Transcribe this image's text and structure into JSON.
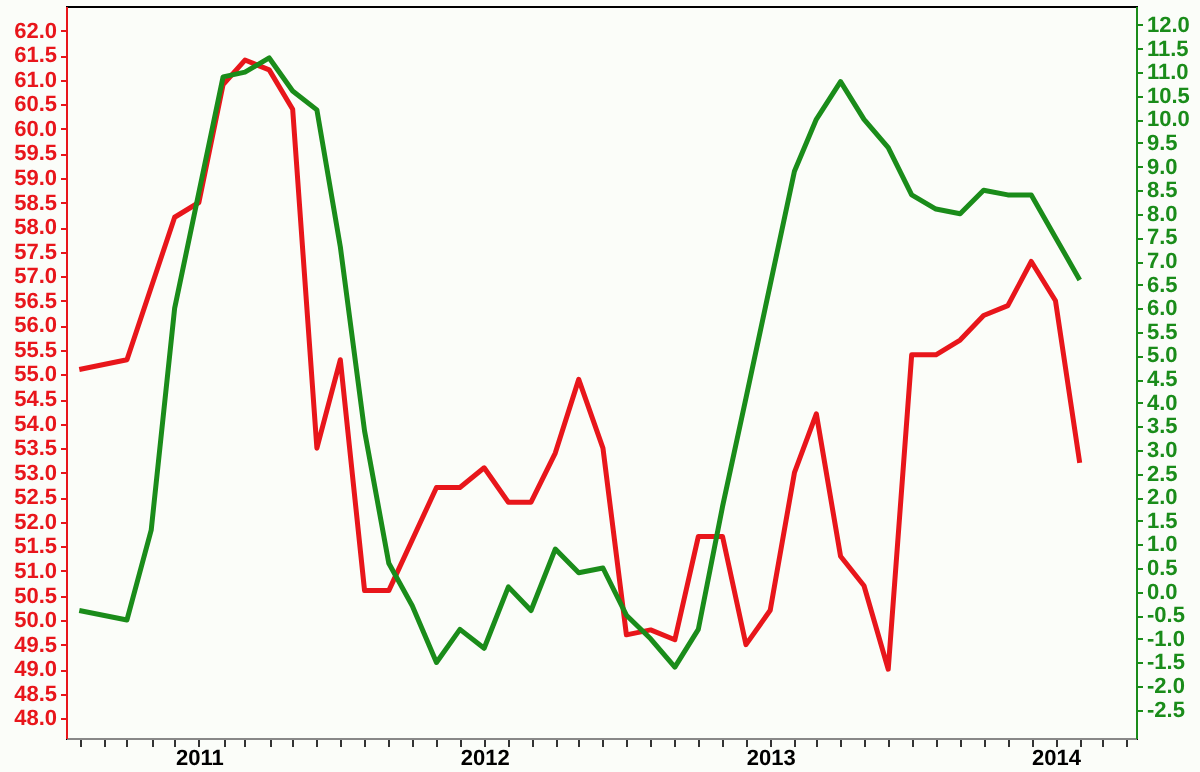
{
  "chart_data": {
    "type": "line",
    "legend": false,
    "grid": false,
    "marker": "none",
    "line_style": "solid",
    "xlim": [
      "2010-07-15",
      "2014-04-14"
    ],
    "xticks": [
      {
        "value": "2010-08",
        "label": null
      },
      {
        "value": "2010-09",
        "label": null
      },
      {
        "value": "2010-10",
        "label": null
      },
      {
        "value": "2010-11",
        "label": null
      },
      {
        "value": "2010-12",
        "label": null
      },
      {
        "value": "2011-01",
        "label": "2011"
      },
      {
        "value": "2011-02",
        "label": null
      },
      {
        "value": "2011-03",
        "label": null
      },
      {
        "value": "2011-04",
        "label": null
      },
      {
        "value": "2011-05",
        "label": null
      },
      {
        "value": "2011-06",
        "label": null
      },
      {
        "value": "2011-07",
        "label": null
      },
      {
        "value": "2011-08",
        "label": null
      },
      {
        "value": "2011-09",
        "label": null
      },
      {
        "value": "2011-10",
        "label": null
      },
      {
        "value": "2011-11",
        "label": null
      },
      {
        "value": "2011-12",
        "label": null
      },
      {
        "value": "2012-01",
        "label": "2012"
      },
      {
        "value": "2012-02",
        "label": null
      },
      {
        "value": "2012-03",
        "label": null
      },
      {
        "value": "2012-04",
        "label": null
      },
      {
        "value": "2012-05",
        "label": null
      },
      {
        "value": "2012-06",
        "label": null
      },
      {
        "value": "2012-07",
        "label": null
      },
      {
        "value": "2012-08",
        "label": null
      },
      {
        "value": "2012-09",
        "label": null
      },
      {
        "value": "2012-10",
        "label": null
      },
      {
        "value": "2012-11",
        "label": null
      },
      {
        "value": "2012-12",
        "label": null
      },
      {
        "value": "2013-01",
        "label": "2013"
      },
      {
        "value": "2013-02",
        "label": null
      },
      {
        "value": "2013-03",
        "label": null
      },
      {
        "value": "2013-04",
        "label": null
      },
      {
        "value": "2013-05",
        "label": null
      },
      {
        "value": "2013-06",
        "label": null
      },
      {
        "value": "2013-07",
        "label": null
      },
      {
        "value": "2013-08",
        "label": null
      },
      {
        "value": "2013-09",
        "label": null
      },
      {
        "value": "2013-10",
        "label": null
      },
      {
        "value": "2013-11",
        "label": null
      },
      {
        "value": "2013-12",
        "label": null
      },
      {
        "value": "2014-01",
        "label": "2014"
      },
      {
        "value": "2014-02",
        "label": null
      },
      {
        "value": "2014-03",
        "label": null
      },
      {
        "value": "2014-04",
        "label": null
      }
    ],
    "ylim": [
      47.6,
      62.5
    ],
    "yticks": [
      {
        "value": 48,
        "label": "48.0"
      },
      {
        "value": 48.5,
        "label": "48.5"
      },
      {
        "value": 49,
        "label": "49.0"
      },
      {
        "value": 49.5,
        "label": "49.5"
      },
      {
        "value": 50,
        "label": "50.0"
      },
      {
        "value": 50.5,
        "label": "50.5"
      },
      {
        "value": 51,
        "label": "51.0"
      },
      {
        "value": 51.5,
        "label": "51.5"
      },
      {
        "value": 52,
        "label": "52.0"
      },
      {
        "value": 52.5,
        "label": "52.5"
      },
      {
        "value": 53,
        "label": "53.0"
      },
      {
        "value": 53.5,
        "label": "53.5"
      },
      {
        "value": 54,
        "label": "54.0"
      },
      {
        "value": 54.5,
        "label": "54.5"
      },
      {
        "value": 55,
        "label": "55.0"
      },
      {
        "value": 55.5,
        "label": "55.5"
      },
      {
        "value": 56,
        "label": "56.0"
      },
      {
        "value": 56.5,
        "label": "56.5"
      },
      {
        "value": 57,
        "label": "57.0"
      },
      {
        "value": 57.5,
        "label": "57.5"
      },
      {
        "value": 58,
        "label": "58.0"
      },
      {
        "value": 58.5,
        "label": "58.5"
      },
      {
        "value": 59,
        "label": "59.0"
      },
      {
        "value": 59.5,
        "label": "59.5"
      },
      {
        "value": 60,
        "label": "60.0"
      },
      {
        "value": 60.5,
        "label": "60.5"
      },
      {
        "value": 61,
        "label": "61.0"
      },
      {
        "value": 61.5,
        "label": "61.5"
      },
      {
        "value": 62,
        "label": "62.0"
      }
    ],
    "y2lim": [
      -3.1,
      12.4
    ],
    "y2ticks": [
      {
        "value": -2.5,
        "label": "-2.5"
      },
      {
        "value": -2,
        "label": "-2.0"
      },
      {
        "value": -1.5,
        "label": "-1.5"
      },
      {
        "value": -1,
        "label": "-1.0"
      },
      {
        "value": -0.5,
        "label": "-0.5"
      },
      {
        "value": 0,
        "label": "0.0"
      },
      {
        "value": 0.5,
        "label": "0.5"
      },
      {
        "value": 1,
        "label": "1.0"
      },
      {
        "value": 1.5,
        "label": "1.5"
      },
      {
        "value": 2,
        "label": "2.0"
      },
      {
        "value": 2.5,
        "label": "2.5"
      },
      {
        "value": 3,
        "label": "3.0"
      },
      {
        "value": 3.5,
        "label": "3.5"
      },
      {
        "value": 4,
        "label": "4.0"
      },
      {
        "value": 4.5,
        "label": "4.5"
      },
      {
        "value": 5,
        "label": "5.0"
      },
      {
        "value": 5.5,
        "label": "5.5"
      },
      {
        "value": 6,
        "label": "6.0"
      },
      {
        "value": 6.5,
        "label": "6.5"
      },
      {
        "value": 7,
        "label": "7.0"
      },
      {
        "value": 7.5,
        "label": "7.5"
      },
      {
        "value": 8,
        "label": "8.0"
      },
      {
        "value": 8.5,
        "label": "8.5"
      },
      {
        "value": 9,
        "label": "9.0"
      },
      {
        "value": 9.5,
        "label": "9.5"
      },
      {
        "value": 10,
        "label": "10.0"
      },
      {
        "value": 10.5,
        "label": "10.5"
      },
      {
        "value": 11,
        "label": "11.0"
      },
      {
        "value": 11.5,
        "label": "11.5"
      },
      {
        "value": 12,
        "label": "12.0"
      }
    ],
    "series": [
      {
        "color": "#e8161b",
        "x": [
          "2010-08",
          "2010-10",
          "2010-12",
          "2011-01",
          "2011-02",
          "2011-03",
          "2011-04",
          "2011-05",
          "2011-06",
          "2011-07",
          "2011-08",
          "2011-09",
          "2011-11",
          "2011-12",
          "2012-01",
          "2012-02",
          "2012-03",
          "2012-04",
          "2012-05",
          "2012-06",
          "2012-07",
          "2012-08",
          "2012-09",
          "2012-10",
          "2012-11",
          "2012-12",
          "2013-01",
          "2013-02",
          "2013-03",
          "2013-04",
          "2013-05",
          "2013-06",
          "2013-07",
          "2013-08",
          "2013-09",
          "2013-10",
          "2013-11",
          "2013-12",
          "2014-01",
          "2014-02"
        ],
        "values": [
          55.1,
          55.3,
          58.2,
          58.5,
          60.9,
          61.4,
          61.2,
          60.4,
          53.5,
          55.3,
          50.6,
          50.6,
          52.7,
          52.7,
          53.1,
          52.4,
          52.4,
          53.4,
          54.9,
          53.5,
          49.7,
          49.8,
          49.6,
          51.7,
          51.7,
          49.5,
          50.2,
          53.0,
          54.2,
          51.3,
          50.7,
          49.0,
          55.4,
          55.4,
          55.7,
          56.2,
          56.4,
          57.3,
          56.5,
          53.2
        ]
      },
      {
        "color": "#1a8c1a",
        "axis": "y2",
        "x": [
          "2010-08",
          "2010-10",
          "2010-11",
          "2010-12",
          "2011-02",
          "2011-03",
          "2011-04",
          "2011-05",
          "2011-06",
          "2011-07",
          "2011-08",
          "2011-09",
          "2011-10",
          "2011-11",
          "2011-12",
          "2012-01",
          "2012-02",
          "2012-03",
          "2012-04",
          "2012-05",
          "2012-06",
          "2012-07",
          "2012-08",
          "2012-09",
          "2012-10",
          "2012-11",
          "2012-12",
          "2013-01",
          "2013-02",
          "2013-03",
          "2013-04",
          "2013-05",
          "2013-06",
          "2013-07",
          "2013-08",
          "2013-09",
          "2013-10",
          "2013-11",
          "2013-12",
          "2014-01",
          "2014-02"
        ],
        "values": [
          -0.4,
          -0.6,
          1.3,
          6.0,
          10.9,
          11.0,
          11.3,
          10.6,
          10.2,
          7.3,
          3.4,
          0.6,
          -0.3,
          -1.5,
          -0.8,
          -1.2,
          0.1,
          -0.4,
          0.9,
          0.4,
          0.5,
          -0.5,
          -1.0,
          -1.6,
          -0.8,
          1.8,
          4.1,
          6.5,
          8.9,
          10.0,
          10.8,
          10.0,
          9.4,
          8.4,
          8.1,
          8.0,
          8.5,
          8.4,
          8.4,
          7.5,
          6.6
        ]
      }
    ]
  }
}
